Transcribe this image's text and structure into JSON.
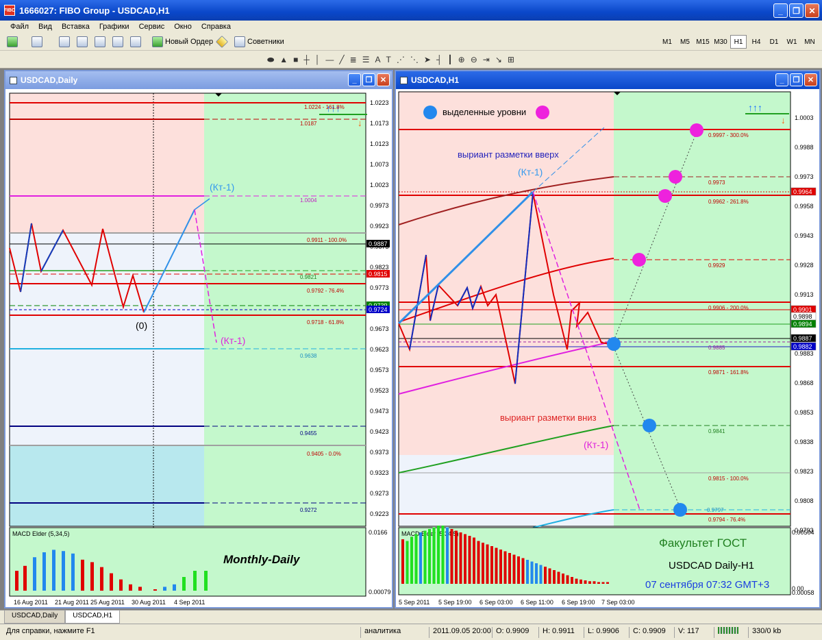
{
  "window": {
    "title": "1666027: FIBO Group - USDCAD,H1",
    "icon_text": "FIBO"
  },
  "menu": [
    "Файл",
    "Вид",
    "Вставка",
    "Графики",
    "Сервис",
    "Окно",
    "Справка"
  ],
  "toolbar": {
    "new_order": "Новый Ордер",
    "advisors": "Советники"
  },
  "timeframes": [
    "M1",
    "M5",
    "M15",
    "M30",
    "H1",
    "H4",
    "D1",
    "W1",
    "MN"
  ],
  "active_timeframe": "H1",
  "left_chart": {
    "title": "USDCAD,Daily",
    "y_ticks": [
      "1.0223",
      "1.0173",
      "1.0123",
      "1.0073",
      "1.0023",
      "0.9973",
      "0.9923",
      "0.9873",
      "0.9823",
      "0.9773",
      "0.9723",
      "0.9673",
      "0.9623",
      "0.9573",
      "0.9523",
      "0.9473",
      "0.9423",
      "0.9373",
      "0.9323",
      "0.9273",
      "0.9223"
    ],
    "price_tags": [
      {
        "label": "0.9887",
        "bg": "#000000"
      },
      {
        "label": "0.9815",
        "bg": "#e00000"
      },
      {
        "label": "0.9739",
        "bg": "#008000"
      },
      {
        "label": "0.9724",
        "bg": "#0000c8"
      }
    ],
    "level_labels": [
      "1.0224 - 161.8%",
      "1.0187",
      "1.0004",
      "0.9911 - 100.0%",
      "0.9821",
      "0.9792 - 76.4%",
      "0.9718 - 61.8%",
      "0.9638",
      "0.9455",
      "0.9405 - 0.0%",
      "0.9272"
    ],
    "annotations": {
      "kt_up": "(Кт-1)",
      "kt_down": "(Кт-1)",
      "zero": "(0)"
    },
    "indicator": "MACD Elder (5,34,5)",
    "indicator_scale": [
      "0.0166",
      "0.00079"
    ],
    "caption": "Monthly-Daily",
    "x_ticks": [
      "16 Aug 2011",
      "21 Aug 2011",
      "25 Aug 2011",
      "30 Aug 2011",
      "4 Sep 2011"
    ]
  },
  "right_chart": {
    "title": "USDCAD,H1",
    "legend_label": "выделенные уровни",
    "y_ticks": [
      "1.0003",
      "0.9988",
      "0.9973",
      "0.9958",
      "0.9943",
      "0.9928",
      "0.9913",
      "0.9898",
      "0.9883",
      "0.9868",
      "0.9853",
      "0.9838",
      "0.9823",
      "0.9808",
      "0.9793"
    ],
    "price_tags": [
      {
        "label": "0.9964",
        "bg": "#e00000"
      },
      {
        "label": "0.9901",
        "bg": "#e00000"
      },
      {
        "label": "0.9898",
        "bg": "#ffffff"
      },
      {
        "label": "0.9894",
        "bg": "#008000"
      },
      {
        "label": "0.9887",
        "bg": "#000000"
      },
      {
        "label": "0.9882",
        "bg": "#0000c8"
      }
    ],
    "level_labels": [
      "0.9997 - 300.0%",
      "0.9973",
      "0.9962 - 261.8%",
      "0.9929",
      "0.9906 - 200.0%",
      "0.9885",
      "0.9871 - 161.8%",
      "0.9841",
      "0.9815 - 100.0%",
      "0.9794 - 76.4%",
      "0.9797"
    ],
    "annotations": {
      "variant_up": "выриант разметки вверх",
      "kt_up": "(Кт-1)",
      "variant_down": "выриант разметки вниз",
      "kt_down": "(Кт-1)"
    },
    "indicator": "MACD Elder (5,34,5)",
    "indicator_scale": [
      "0.00504",
      "0.00058"
    ],
    "indicator_zero": "0.00",
    "captions": {
      "faculty": "Факультет ГОСТ",
      "pair": "USDCAD Daily-H1",
      "date": "07 сентября 07:32 GMT+3"
    },
    "x_ticks": [
      "5 Sep 2011",
      "5 Sep 19:00",
      "6 Sep 03:00",
      "6 Sep 11:00",
      "6 Sep 19:00",
      "7 Sep 03:00"
    ]
  },
  "tabs": [
    "USDCAD,Daily",
    "USDCAD,H1"
  ],
  "active_tab": "USDCAD,H1",
  "status": {
    "help": "Для справки, нажмите F1",
    "profile": "аналитика",
    "datetime": "2011.09.05 20:00",
    "open": "O: 0.9909",
    "high": "H: 0.9911",
    "low": "L: 0.9906",
    "close": "C: 0.9909",
    "volume": "V: 117",
    "traffic": "330/0 kb"
  },
  "colors": {
    "sell_zone": "#fde0dc",
    "buy_zone": "#c8f8cc",
    "neutral": "#e8f0ff",
    "accent_blue": "#2288ee",
    "magenta": "#ee22cc"
  }
}
